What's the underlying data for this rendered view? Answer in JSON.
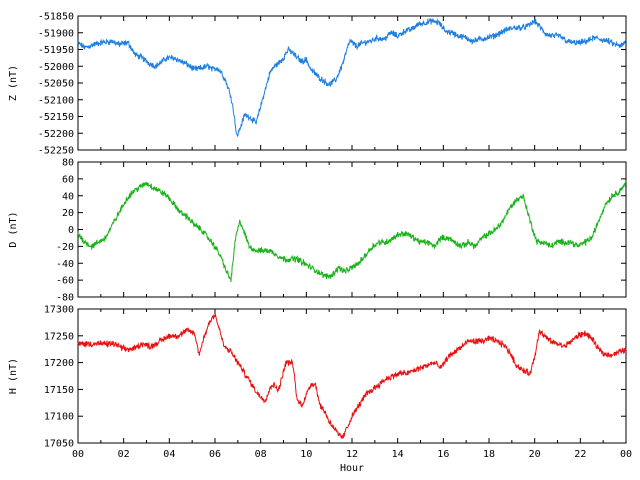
{
  "chart_data": [
    {
      "type": "line",
      "ylabel": "Z (nT)",
      "ylim": [
        -52250,
        -51850
      ],
      "yticks": [
        -51850,
        -51900,
        -51950,
        -52000,
        -52050,
        -52100,
        -52150,
        -52200,
        -52250
      ],
      "color": "#1e7fe0",
      "series": [
        {
          "x": [
            0,
            0.3,
            0.7,
            1.0,
            1.5,
            1.8,
            2.2,
            2.5,
            2.8,
            3.1,
            3.4,
            3.7,
            3.9,
            4.2,
            4.5,
            4.8,
            5.1,
            5.4,
            5.7,
            5.9,
            6.1,
            6.3,
            6.5,
            6.7,
            6.85,
            6.95,
            7.1,
            7.3,
            7.5,
            7.8,
            8.0,
            8.2,
            8.4,
            8.6,
            8.8,
            9.0,
            9.2,
            9.4,
            9.6,
            9.8,
            10.0,
            10.2,
            10.5,
            10.8,
            11.0,
            11.3,
            11.6,
            11.9,
            12.2,
            12.5,
            12.8,
            13.1,
            13.4,
            13.7,
            14.0,
            14.3,
            14.6,
            14.9,
            15.2,
            15.5,
            15.8,
            16.1,
            16.4,
            16.7,
            17.0,
            17.3,
            17.6,
            17.9,
            18.2,
            18.5,
            18.8,
            19.1,
            19.4,
            19.7,
            20.0,
            20.2,
            20.5,
            20.8,
            21.1,
            21.4,
            21.7,
            22.0,
            22.3,
            22.6,
            22.9,
            23.2,
            23.5,
            23.8,
            24.0
          ],
          "y": [
            -51930,
            -51945,
            -51935,
            -51930,
            -51925,
            -51935,
            -51930,
            -51965,
            -51975,
            -51990,
            -52000,
            -51985,
            -51975,
            -51975,
            -51985,
            -51995,
            -52010,
            -52005,
            -52000,
            -52010,
            -52005,
            -52020,
            -52050,
            -52090,
            -52150,
            -52210,
            -52185,
            -52145,
            -52150,
            -52170,
            -52120,
            -52070,
            -52020,
            -52000,
            -51990,
            -51975,
            -51950,
            -51960,
            -51975,
            -51985,
            -51980,
            -52010,
            -52030,
            -52045,
            -52055,
            -52040,
            -51990,
            -51925,
            -51940,
            -51930,
            -51925,
            -51915,
            -51920,
            -51900,
            -51910,
            -51895,
            -51890,
            -51875,
            -51870,
            -51865,
            -51870,
            -51895,
            -51900,
            -51910,
            -51915,
            -51925,
            -51920,
            -51915,
            -51910,
            -51900,
            -51890,
            -51885,
            -51885,
            -51880,
            -51865,
            -51880,
            -51905,
            -51910,
            -51910,
            -51925,
            -51930,
            -51930,
            -51925,
            -51915,
            -51920,
            -51925,
            -51935,
            -51940,
            -51925
          ]
        }
      ]
    },
    {
      "type": "line",
      "ylabel": "D (nT)",
      "ylim": [
        -80,
        80
      ],
      "yticks": [
        80,
        60,
        40,
        20,
        0,
        -20,
        -40,
        -60,
        -80
      ],
      "color": "#19b219",
      "series": [
        {
          "x": [
            0,
            0.3,
            0.6,
            0.9,
            1.2,
            1.5,
            1.8,
            2.1,
            2.4,
            2.7,
            3.0,
            3.3,
            3.6,
            3.9,
            4.2,
            4.5,
            4.8,
            5.1,
            5.4,
            5.7,
            6.0,
            6.3,
            6.5,
            6.7,
            6.9,
            7.1,
            7.3,
            7.5,
            7.8,
            8.1,
            8.4,
            8.7,
            9.0,
            9.3,
            9.6,
            9.9,
            10.2,
            10.5,
            10.8,
            11.1,
            11.4,
            11.7,
            12.0,
            12.3,
            12.6,
            12.9,
            13.2,
            13.5,
            13.8,
            14.1,
            14.4,
            14.7,
            15.0,
            15.3,
            15.6,
            15.9,
            16.2,
            16.5,
            16.8,
            17.1,
            17.4,
            17.7,
            18.0,
            18.3,
            18.6,
            18.9,
            19.2,
            19.5,
            19.8,
            20.1,
            20.4,
            20.7,
            21.0,
            21.3,
            21.6,
            21.9,
            22.2,
            22.5,
            22.8,
            23.1,
            23.4,
            23.7,
            24.0
          ],
          "y": [
            -5,
            -15,
            -20,
            -15,
            -10,
            5,
            20,
            35,
            45,
            50,
            55,
            50,
            45,
            40,
            30,
            20,
            15,
            5,
            0,
            -10,
            -20,
            -35,
            -50,
            -60,
            -10,
            10,
            -5,
            -20,
            -25,
            -25,
            -25,
            -30,
            -35,
            -35,
            -35,
            -40,
            -45,
            -50,
            -55,
            -55,
            -45,
            -50,
            -45,
            -40,
            -30,
            -20,
            -15,
            -15,
            -10,
            -5,
            -5,
            -10,
            -15,
            -15,
            -20,
            -10,
            -10,
            -15,
            -20,
            -15,
            -20,
            -10,
            -5,
            0,
            10,
            25,
            35,
            40,
            10,
            -15,
            -15,
            -20,
            -15,
            -15,
            -15,
            -20,
            -15,
            -10,
            10,
            30,
            40,
            45,
            55
          ]
        }
      ]
    },
    {
      "type": "line",
      "ylabel": "H (nT)",
      "ylim": [
        17050,
        17300
      ],
      "yticks": [
        17300,
        17250,
        17200,
        17150,
        17100,
        17050
      ],
      "xlabel": "Hour",
      "xticks": [
        "00",
        "02",
        "04",
        "06",
        "08",
        "10",
        "12",
        "14",
        "16",
        "18",
        "20",
        "22",
        "00"
      ],
      "color": "#e81010",
      "series": [
        {
          "x": [
            0,
            0.4,
            0.8,
            1.2,
            1.6,
            2.0,
            2.4,
            2.8,
            3.2,
            3.6,
            4.0,
            4.4,
            4.8,
            5.1,
            5.3,
            5.5,
            5.8,
            6.0,
            6.2,
            6.4,
            6.7,
            7.0,
            7.3,
            7.6,
            7.9,
            8.2,
            8.5,
            8.8,
            9.1,
            9.4,
            9.6,
            9.8,
            10.0,
            10.2,
            10.4,
            10.6,
            10.8,
            11.0,
            11.2,
            11.4,
            11.6,
            11.8,
            12.0,
            12.3,
            12.6,
            12.9,
            13.2,
            13.5,
            13.8,
            14.1,
            14.4,
            14.7,
            15.0,
            15.3,
            15.6,
            15.9,
            16.2,
            16.5,
            16.8,
            17.1,
            17.4,
            17.7,
            18.0,
            18.3,
            18.6,
            18.9,
            19.2,
            19.5,
            19.8,
            20.0,
            20.2,
            20.4,
            20.7,
            21.0,
            21.3,
            21.6,
            21.9,
            22.2,
            22.5,
            22.8,
            23.1,
            23.4,
            23.7,
            24.0
          ],
          "y": [
            17235,
            17235,
            17235,
            17235,
            17235,
            17225,
            17225,
            17235,
            17230,
            17240,
            17250,
            17250,
            17260,
            17255,
            17215,
            17245,
            17280,
            17290,
            17260,
            17230,
            17220,
            17200,
            17180,
            17160,
            17140,
            17130,
            17160,
            17150,
            17200,
            17200,
            17130,
            17120,
            17140,
            17160,
            17160,
            17120,
            17110,
            17090,
            17080,
            17065,
            17060,
            17080,
            17100,
            17120,
            17140,
            17150,
            17160,
            17170,
            17175,
            17180,
            17180,
            17185,
            17190,
            17195,
            17200,
            17190,
            17210,
            17220,
            17230,
            17240,
            17240,
            17240,
            17245,
            17240,
            17235,
            17220,
            17195,
            17185,
            17180,
            17210,
            17260,
            17250,
            17240,
            17235,
            17230,
            17240,
            17250,
            17255,
            17245,
            17225,
            17215,
            17215,
            17220,
            17225
          ]
        }
      ]
    }
  ]
}
